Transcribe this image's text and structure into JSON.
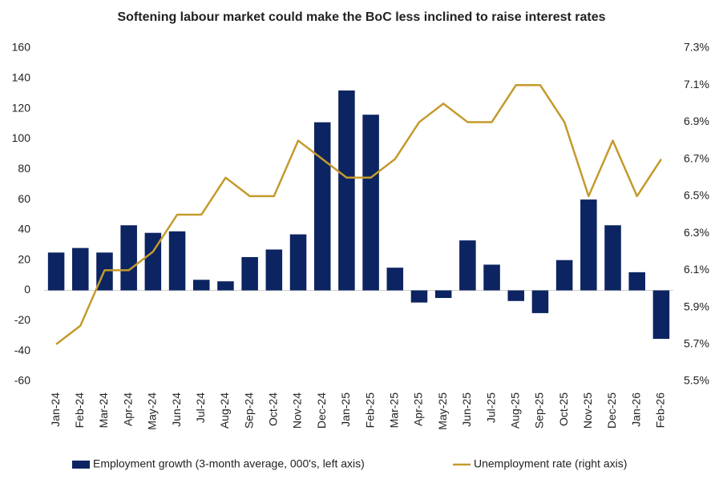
{
  "chart_data": {
    "type": "bar",
    "title": "Softening labour market could make the BoC less inclined to raise interest rates",
    "categories": [
      "Jan-24",
      "Feb-24",
      "Mar-24",
      "Apr-24",
      "May-24",
      "Jun-24",
      "Jul-24",
      "Aug-24",
      "Sep-24",
      "Oct-24",
      "Nov-24",
      "Dec-24",
      "Jan-25",
      "Feb-25",
      "Mar-25",
      "Apr-25",
      "May-25",
      "Jun-25",
      "Jul-25",
      "Aug-25",
      "Sep-25",
      "Oct-25",
      "Nov-25",
      "Dec-25",
      "Jan-26",
      "Feb-26"
    ],
    "series": [
      {
        "name": "Employment growth (3-month average, 000's, left axis)",
        "type": "bar",
        "color": "#0c2461",
        "values": [
          25,
          28,
          25,
          43,
          38,
          39,
          7,
          6,
          22,
          27,
          37,
          111,
          132,
          116,
          15,
          -8,
          -5,
          33,
          17,
          -7,
          -15,
          20,
          60,
          43,
          12,
          -32
        ]
      },
      {
        "name": "Unemployment rate (right axis)",
        "type": "line",
        "axis": "y2",
        "color": "#c49a2c",
        "values": [
          5.7,
          5.8,
          6.1,
          6.1,
          6.2,
          6.4,
          6.4,
          6.6,
          6.5,
          6.5,
          6.8,
          6.7,
          6.6,
          6.6,
          6.7,
          6.9,
          7.0,
          6.9,
          6.9,
          7.1,
          7.1,
          6.9,
          6.5,
          6.8,
          6.5,
          6.7
        ]
      }
    ],
    "ylim": [
      -60,
      160
    ],
    "yticks": [
      -60,
      -40,
      -20,
      0,
      20,
      40,
      60,
      80,
      100,
      120,
      140,
      160
    ],
    "y2lim": [
      5.5,
      7.3
    ],
    "y2ticks": [
      {
        "value": 5.5,
        "label": "5.5%"
      },
      {
        "value": 5.7,
        "label": "5.7%"
      },
      {
        "value": 5.9,
        "label": "5.9%"
      },
      {
        "value": 6.1,
        "label": "6.1%"
      },
      {
        "value": 6.3,
        "label": "6.3%"
      },
      {
        "value": 6.5,
        "label": "6.5%"
      },
      {
        "value": 6.7,
        "label": "6.7%"
      },
      {
        "value": 6.9,
        "label": "6.9%"
      },
      {
        "value": 7.1,
        "label": "7.1%"
      },
      {
        "value": 7.3,
        "label": "7.3%"
      }
    ],
    "grid": false,
    "legend": "bottom"
  }
}
